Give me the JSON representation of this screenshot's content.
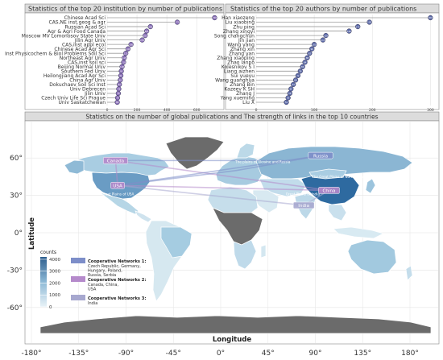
{
  "panels": {
    "institutions_title": "Statistics of the top 20 institution by number of publications",
    "authors_title": "Statistics of the top 20 authors by number of publications",
    "map_title": "Statistics on the number of global publications and The strength of links in the top 10 countries"
  },
  "chart_data": [
    {
      "type": "scatter",
      "title": "Statistics of the top 20 institution by number of publications",
      "categories": [
        "Chinese Acad Sci",
        "CAS,NE inst.geog & agr",
        "Russian Acad Sci",
        "Agr & Agri Food Canada",
        "Moscow MV Lomonosov State Univ",
        "Jilin Agr Univ",
        "CAS,inst appl ecol",
        "Chinese Acad Agr Sci",
        "Inst Physicochem & Biol Problems Soil Sci",
        "Northeast Agr Univ",
        "CAS,inst soil sci",
        "Beijing Normal Univ",
        "Southern Fed Univ",
        "Heilongjiang Acad Agr Sci",
        "China Agr Univ",
        "Dokuchaev Soil Sci Inst",
        "Univ Debrecen",
        "Jilin Univ",
        "Czech Univ Life Sci Prague",
        "Univ Saskatchewan"
      ],
      "values": [
        720,
        470,
        290,
        265,
        255,
        235,
        160,
        140,
        125,
        115,
        110,
        100,
        95,
        92,
        88,
        82,
        78,
        75,
        70,
        68
      ],
      "value_labels": [
        "720",
        "470",
        "290",
        "265",
        "255",
        "235",
        "160",
        "140",
        "125",
        "115",
        "110",
        "100",
        "95",
        "92",
        "88",
        "82",
        "78",
        "75",
        "70",
        "68"
      ],
      "xticks": [
        0,
        200,
        400,
        600
      ],
      "xlim": [
        0,
        750
      ],
      "point_color": "#8a6fb8"
    },
    {
      "type": "scatter",
      "title": "Statistics of the top 20 authors by number of publications",
      "categories": [
        "Han xiaozeng",
        "Liu xiaobing",
        "Zhu ping",
        "Zhang xingyi",
        "Song changchun",
        "Jin jian",
        "Wang yang",
        "Zhang xin",
        "Zhang yan",
        "Zhang xiaoping",
        "Zhao lanpo",
        "Kolesnikov S I",
        "Liang aizhen",
        "Sui yueyu",
        "Wang guanghua",
        "Zhang Bin",
        "Kazeev K SH",
        "Zhang J",
        "Yang xueming",
        "Liu X"
      ],
      "values": [
        300,
        195,
        175,
        160,
        120,
        115,
        100,
        96,
        92,
        88,
        84,
        80,
        76,
        72,
        68,
        64,
        60,
        58,
        55,
        52
      ],
      "value_labels": [
        "300",
        "195",
        "175",
        "160",
        "120",
        "115",
        "100",
        "96",
        "92",
        "88",
        "84",
        "80",
        "76",
        "72",
        "68",
        "64",
        "60",
        "58",
        "55",
        "52"
      ],
      "xticks": [
        0,
        100,
        200,
        300
      ],
      "xlim": [
        0,
        305
      ],
      "point_color": "#5c6aa8"
    },
    {
      "type": "heatmap",
      "title": "Statistics on the number of global publications and The strength of links in the top 10 countries",
      "xlabel": "Longitude",
      "ylabel": "Latitude",
      "xticks": [
        "-180°",
        "-135°",
        "-90°",
        "-45°",
        "0°",
        "45°",
        "90°",
        "135°",
        "180°"
      ],
      "yticks": [
        "60°",
        "30°",
        "0°",
        "-30°",
        "-60°"
      ],
      "xlim": [
        -195,
        195
      ],
      "ylim": [
        -85,
        90
      ],
      "legend": {
        "title": "counts",
        "ticks": [
          "4000",
          "3000",
          "2000",
          "1000",
          "0"
        ],
        "range": [
          0,
          4200
        ],
        "placement": "bottom-left"
      },
      "countries": [
        {
          "label": "USA",
          "lon": -98,
          "lat": 38,
          "count": 2100
        },
        {
          "label": "Canada",
          "lon": -100,
          "lat": 58,
          "count": 1600
        },
        {
          "label": "China",
          "lon": 103,
          "lat": 34,
          "count": 4200
        },
        {
          "label": "Russia",
          "lon": 95,
          "lat": 62,
          "count": 2600
        },
        {
          "label": "India",
          "lon": 79,
          "lat": 22,
          "count": 500
        }
      ],
      "map_annotations": [
        {
          "text": "Canada",
          "lon": -102,
          "lat": 65
        },
        {
          "text": "The plains of Ukraine and Russia",
          "lon": 40,
          "lat": 56
        },
        {
          "text": "The Great Plains of North China",
          "lon": 112,
          "lat": 44
        },
        {
          "text": "Great Plains of USA",
          "lon": -98,
          "lat": 30
        },
        {
          "text": "Great Plains of India",
          "lon": 78,
          "lat": 30
        }
      ],
      "links": [
        {
          "from": [
            -98,
            38
          ],
          "to": [
            103,
            34
          ],
          "network": 2
        },
        {
          "from": [
            -100,
            58
          ],
          "to": [
            103,
            34
          ],
          "network": 2
        },
        {
          "from": [
            -98,
            38
          ],
          "to": [
            -100,
            58
          ],
          "network": 2
        },
        {
          "from": [
            -98,
            38
          ],
          "to": [
            95,
            62
          ],
          "network": 1
        },
        {
          "from": [
            -100,
            58
          ],
          "to": [
            60,
            58
          ],
          "network": 1
        },
        {
          "from": [
            15,
            50
          ],
          "to": [
            95,
            62
          ],
          "network": 1
        },
        {
          "from": [
            -98,
            38
          ],
          "to": [
            15,
            50
          ],
          "network": 1
        },
        {
          "from": [
            79,
            22
          ],
          "to": [
            103,
            34
          ],
          "network": 3
        },
        {
          "from": [
            -98,
            38
          ],
          "to": [
            79,
            22
          ],
          "network": 3
        }
      ],
      "networks": [
        {
          "title": "Cooperative Networks 1:",
          "members": [
            "Czech Republic, Germany,",
            "Hungary, Poland,",
            "Russia, Serbia"
          ],
          "color": "#7d8ec9"
        },
        {
          "title": "Cooperative Networks 2:",
          "members": [
            "Canada, China,",
            "USA"
          ],
          "color": "#b58acb"
        },
        {
          "title": "Cooperative Networks 3:",
          "members": [
            "India"
          ],
          "color": "#a7a8cf"
        }
      ]
    }
  ]
}
